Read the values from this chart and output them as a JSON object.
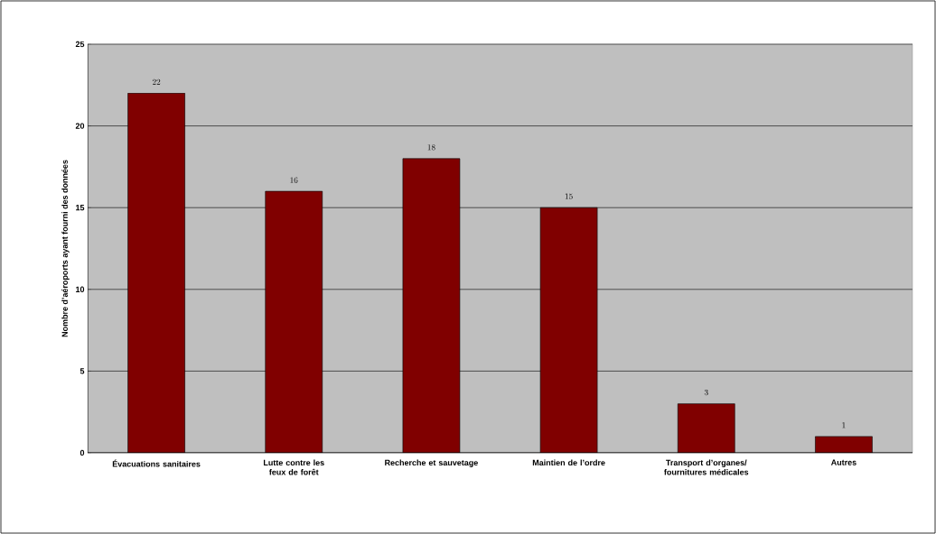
{
  "chart_data": {
    "type": "bar",
    "ylabel": "Nombre d’aéroports ayant fourni des données",
    "categories": [
      "Évacuations sanitaires",
      "Lutte contre les feux de forêt",
      "Recherche et sauvetage",
      "Maintien de l’ordre",
      "Transport d’organes/ fournitures médicales",
      "Autres"
    ],
    "values": [
      22,
      16,
      18,
      15,
      3,
      1
    ],
    "color": "#800000",
    "ylim": [
      0,
      25
    ],
    "yticks": [
      0,
      5,
      10,
      15,
      20,
      25
    ],
    "grid": "y",
    "data_labels": true
  }
}
